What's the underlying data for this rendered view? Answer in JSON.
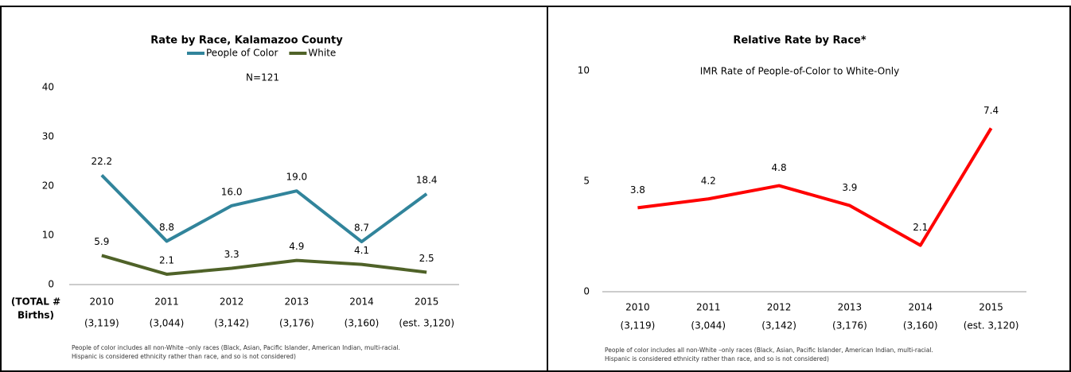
{
  "chart_data": [
    {
      "type": "line",
      "title": "Rate by Race, Kalamazoo County",
      "annotation": "N=121",
      "categories": [
        "2010",
        "2011",
        "2012",
        "2013",
        "2014",
        "2015"
      ],
      "sublabels": [
        "(3,119)",
        "(3,044)",
        "(3,142)",
        "(3,176)",
        "(3,160)",
        "(est. 3,120)"
      ],
      "row_label": [
        "(TOTAL #",
        "Births)"
      ],
      "series": [
        {
          "name": "People of Color",
          "color": "#31849b",
          "values": [
            22.2,
            8.8,
            16,
            19,
            8.7,
            18.4
          ],
          "value_labels": [
            "22.2",
            "8.8",
            "16.0",
            "19.0",
            "8.7",
            "18.4"
          ]
        },
        {
          "name": "White",
          "color": "#4f6228",
          "values": [
            5.9,
            2.1,
            3.3,
            4.9,
            4.1,
            2.5
          ],
          "value_labels": [
            "5.9",
            "2.1",
            "3.3",
            "4.9",
            "4.1",
            "2.5"
          ]
        }
      ],
      "ylim": [
        0,
        40
      ],
      "yticks": [
        0,
        10,
        20,
        30,
        40
      ],
      "legend": "top",
      "footnote": [
        "People of color includes all non-White –only races (Black, Asian, Pacific Islander, American Indian, multi-racial.",
        "Hispanic is considered ethnicity rather than race, and so is not considered)"
      ]
    },
    {
      "type": "line",
      "title": "Relative Rate by Race*",
      "subtitle": "IMR Rate of People-of-Color to White-Only",
      "categories": [
        "2010",
        "2011",
        "2012",
        "2013",
        "2014",
        "2015"
      ],
      "sublabels": [
        "(3,119)",
        "(3,044)",
        "(3,142)",
        "(3,176)",
        "(3,160)",
        "(est. 3,120)"
      ],
      "series": [
        {
          "color": "#ff0000",
          "values": [
            3.8,
            4.2,
            4.8,
            3.9,
            2.1,
            7.4
          ]
        }
      ],
      "ylim": [
        0,
        10
      ],
      "yticks": [
        0,
        5,
        10
      ],
      "footnote": [
        "People of color includes all non-White –only races (Black, Asian, Pacific Islander, American Indian, multi-racial.",
        "Hispanic is considered ethnicity rather than race, and so is not considered)"
      ]
    }
  ]
}
